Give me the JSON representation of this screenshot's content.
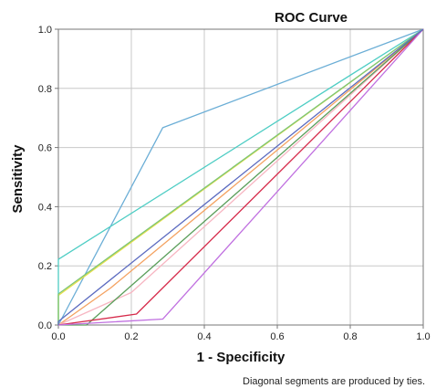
{
  "chart_data": {
    "type": "line",
    "title": "ROC Curve",
    "xlabel": "1 - Specificity",
    "ylabel": "Sensitivity",
    "xlim": [
      0,
      1
    ],
    "ylim": [
      0,
      1
    ],
    "x_ticks": [
      "0.0",
      "0.2",
      "0.4",
      "0.6",
      "0.8",
      "1.0"
    ],
    "y_ticks": [
      "0.0",
      "0.2",
      "0.4",
      "0.6",
      "0.8",
      "1.0"
    ],
    "grid": true,
    "legend": "none",
    "footnote": "Diagonal segments are produced by ties.",
    "series": [
      {
        "color": "#6baed6",
        "points": [
          [
            0,
            0
          ],
          [
            0.286,
            0.667
          ],
          [
            1,
            1
          ]
        ]
      },
      {
        "color": "#4ecdc4",
        "points": [
          [
            0,
            0
          ],
          [
            0,
            0.222
          ],
          [
            1,
            1
          ]
        ]
      },
      {
        "color": "#e8e04a",
        "points": [
          [
            0,
            0
          ],
          [
            0,
            0.1
          ],
          [
            1,
            1
          ]
        ]
      },
      {
        "color": "#7cc576",
        "points": [
          [
            0,
            0
          ],
          [
            0,
            0.105
          ],
          [
            1,
            1
          ]
        ]
      },
      {
        "color": "#f4a261",
        "points": [
          [
            0,
            0
          ],
          [
            0.143,
            0.125
          ],
          [
            1,
            1
          ]
        ]
      },
      {
        "color": "#f7b6c2",
        "points": [
          [
            0,
            0
          ],
          [
            0.2,
            0.11
          ],
          [
            1,
            1
          ]
        ]
      },
      {
        "color": "#5a9e5a",
        "points": [
          [
            0,
            0
          ],
          [
            0.077,
            0
          ],
          [
            1,
            1
          ]
        ]
      },
      {
        "color": "#d62b4b",
        "points": [
          [
            0,
            0
          ],
          [
            0.214,
            0.037
          ],
          [
            1,
            1
          ]
        ]
      },
      {
        "color": "#c070e0",
        "points": [
          [
            0,
            0
          ],
          [
            0.286,
            0.02
          ],
          [
            1,
            1
          ]
        ]
      },
      {
        "color": "#5c6bc0",
        "points": [
          [
            0,
            0
          ],
          [
            0,
            0.012
          ],
          [
            1,
            1
          ]
        ]
      }
    ]
  }
}
